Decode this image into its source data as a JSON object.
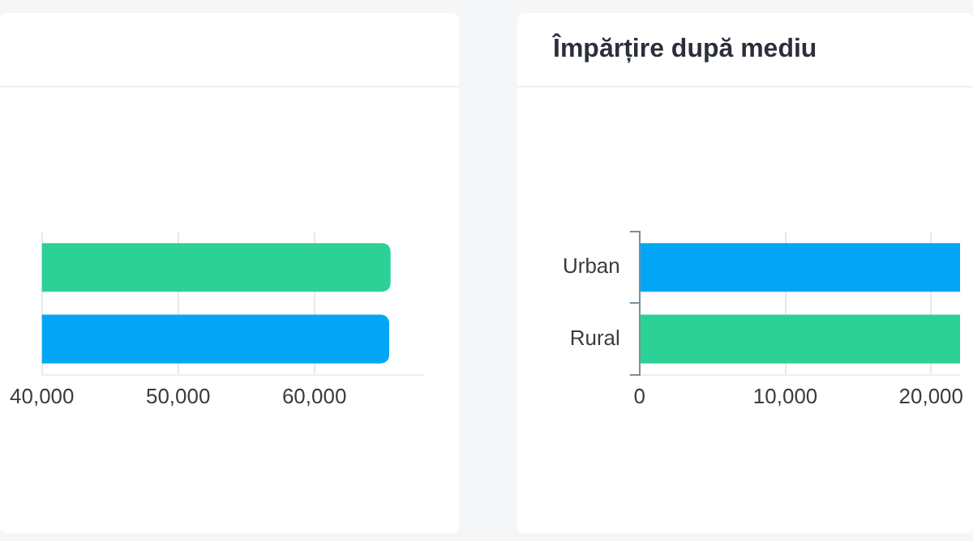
{
  "chart_data": [
    {
      "type": "bar",
      "orientation": "horizontal",
      "categories": [
        null,
        null
      ],
      "colors": [
        "#2bd195",
        "#03a6f6"
      ],
      "values": [
        65600,
        65500
      ],
      "xlim": [
        40000,
        68000
      ],
      "xticks": [
        {
          "value": 40000,
          "label": "40,000"
        },
        {
          "value": 50000,
          "label": "50,000"
        },
        {
          "value": 60000,
          "label": "60,000"
        }
      ],
      "grid": "x",
      "legend": false
    },
    {
      "type": "bar",
      "orientation": "horizontal",
      "title": "Împărțire după mediu",
      "categories": [
        "Urban",
        "Rural"
      ],
      "colors": [
        "#03a6f6",
        "#2bd195"
      ],
      "values": [
        22000,
        22000
      ],
      "xlim": [
        0,
        22000
      ],
      "xticks": [
        0,
        {
          "value": 10000,
          "label": "10,000"
        },
        {
          "value": 20000,
          "label": "20,000"
        }
      ],
      "grid": "x",
      "legend": false
    }
  ]
}
